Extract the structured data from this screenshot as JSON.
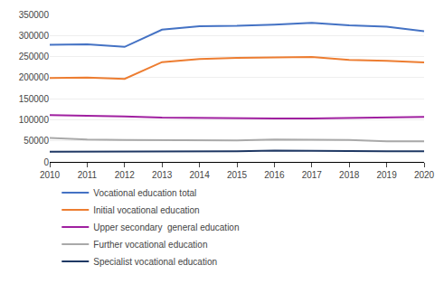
{
  "chart_data": {
    "type": "line",
    "x": [
      2010,
      2011,
      2012,
      2013,
      2014,
      2015,
      2016,
      2017,
      2018,
      2019,
      2020
    ],
    "series": [
      {
        "name": "Vocational education total",
        "color": "#4472C4",
        "values": [
          278000,
          279000,
          273000,
          314000,
          322000,
          323000,
          326000,
          330000,
          324000,
          321000,
          310000
        ]
      },
      {
        "name": "Initial vocational education",
        "color": "#ED7D31",
        "values": [
          199000,
          200000,
          197000,
          237000,
          244000,
          247000,
          248000,
          249000,
          242000,
          240000,
          236000
        ]
      },
      {
        "name": "Upper secondary  general education",
        "color": "#A020A0",
        "values": [
          111000,
          110000,
          108000,
          105000,
          104000,
          103000,
          103000,
          103000,
          104000,
          106000,
          107000
        ]
      },
      {
        "name": "Further vocational education",
        "color": "#A9A9A9",
        "values": [
          57000,
          53000,
          52000,
          52000,
          51000,
          51000,
          53000,
          52000,
          52000,
          49000,
          49000
        ]
      },
      {
        "name": "Specialist vocational education",
        "color": "#1F3864",
        "values": [
          24000,
          24000,
          24000,
          24000,
          24000,
          25000,
          27000,
          26000,
          25000,
          25000,
          25000
        ]
      }
    ],
    "xlim": [
      2010,
      2020
    ],
    "xticks": [
      2010,
      2011,
      2012,
      2013,
      2014,
      2015,
      2016,
      2017,
      2018,
      2019,
      2020
    ],
    "ylim": [
      0,
      350000
    ],
    "yticks": [
      0,
      50000,
      100000,
      150000,
      200000,
      250000,
      300000,
      350000
    ],
    "grid": true,
    "legend": "bottom"
  }
}
